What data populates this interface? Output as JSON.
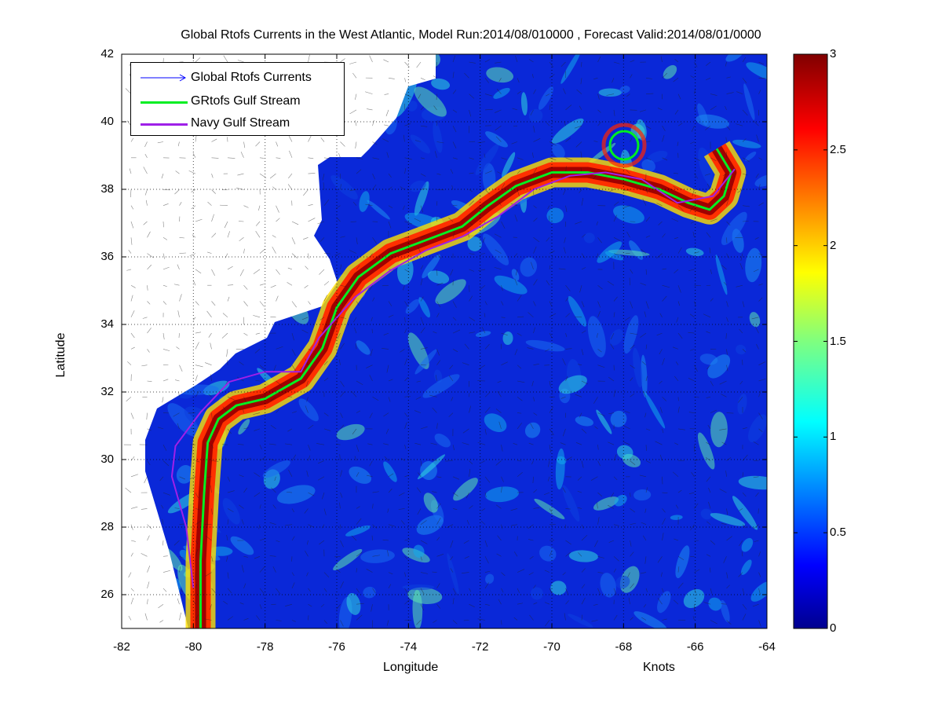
{
  "title": "Global Rtofs Currents in the West Atlantic, Model Run:2014/08/010000 , Forecast Valid:2014/08/01/0000",
  "xlabel": "Longitude",
  "ylabel": "Latitude",
  "colorbar_label": "Knots",
  "legend": [
    {
      "label": "Global Rtofs Currents",
      "color": "#0000ff",
      "style": "arrow"
    },
    {
      "label": "GRtofs Gulf Stream",
      "color": "#00ee22",
      "style": "thick"
    },
    {
      "label": "Navy Gulf Stream",
      "color": "#9f20e8",
      "style": "thick"
    }
  ],
  "colors": {
    "land": "#ffffff",
    "ocean_low": "#0a28d8",
    "ocean_mid": "#15c8e8",
    "jet_high": "#8c0000"
  },
  "chart_data": {
    "type": "heatmap",
    "title": "Global Rtofs Currents in the West Atlantic, Model Run:2014/08/010000 , Forecast Valid:2014/08/01/0000",
    "xlabel": "Longitude",
    "ylabel": "Latitude",
    "xlim": [
      -82,
      -64
    ],
    "ylim": [
      25,
      42
    ],
    "x_ticks": [
      "-82",
      "-80",
      "-78",
      "-76",
      "-74",
      "-72",
      "-70",
      "-68",
      "-66",
      "-64"
    ],
    "y_ticks": [
      "26",
      "28",
      "30",
      "32",
      "34",
      "36",
      "38",
      "40",
      "42"
    ],
    "grid": true,
    "legend_position": "top-left",
    "colorbar": {
      "label": "Knots",
      "range": [
        0,
        3
      ],
      "ticks": [
        "0",
        "0.5",
        "1",
        "1.5",
        "2",
        "2.5",
        "3"
      ],
      "colormap": "jet"
    },
    "series": [
      {
        "name": "GRtofs Gulf Stream",
        "x": [
          -79.8,
          -79.8,
          -79.7,
          -79.6,
          -79.3,
          -78.8,
          -78.0,
          -77.0,
          -76.4,
          -76.0,
          -75.4,
          -74.5,
          -73.5,
          -72.5,
          -71.8,
          -71.0,
          -70.0,
          -69.0,
          -68.0,
          -67.0,
          -66.2,
          -65.6,
          -65.2,
          -65.0,
          -65.4
        ],
        "y": [
          25.0,
          27.0,
          29.0,
          30.5,
          31.2,
          31.6,
          31.8,
          32.4,
          33.3,
          34.5,
          35.4,
          36.1,
          36.5,
          36.9,
          37.5,
          38.1,
          38.5,
          38.5,
          38.3,
          38.0,
          37.6,
          37.4,
          37.8,
          38.5,
          39.2
        ]
      },
      {
        "name": "Navy Gulf Stream",
        "x": [
          -80.0,
          -80.2,
          -80.6,
          -80.5,
          -79.8,
          -79.0,
          -78.0,
          -77.0,
          -76.5,
          -75.5,
          -74.5,
          -73.5,
          -72.5,
          -71.5,
          -70.5,
          -69.5,
          -68.5,
          -67.5,
          -66.5,
          -65.5,
          -64.9
        ],
        "y": [
          26.2,
          28.0,
          29.5,
          30.4,
          31.4,
          32.3,
          32.6,
          32.6,
          33.6,
          34.8,
          35.6,
          36.2,
          36.6,
          37.2,
          38.0,
          38.4,
          38.5,
          38.3,
          37.6,
          37.8,
          38.6
        ]
      }
    ]
  }
}
